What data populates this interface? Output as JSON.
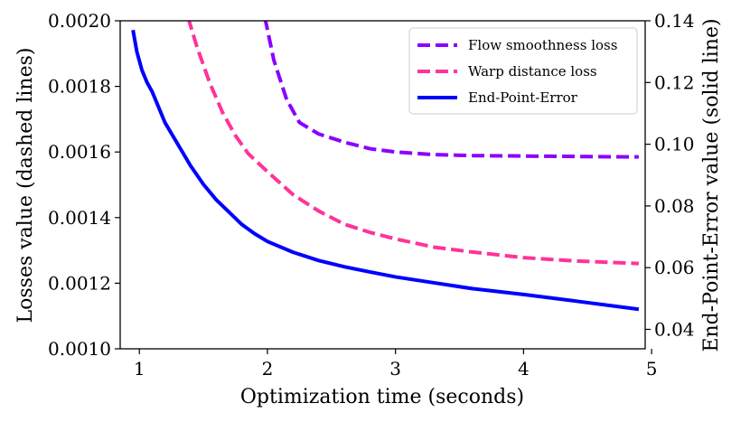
{
  "chart_data": {
    "type": "line",
    "title": "",
    "xlabel": "Optimization time (seconds)",
    "ylabel_left": "Losses value (dashed lines)",
    "ylabel_right": "End-Point-Error value (solid line)",
    "xlim": [
      0.85,
      4.95
    ],
    "ylim_left": [
      0.001,
      0.002
    ],
    "ylim_right": [
      0.0337,
      0.14
    ],
    "x_ticks": [
      1,
      2,
      3,
      4,
      5
    ],
    "x_tick_labels": [
      "1",
      "2",
      "3",
      "4",
      "5"
    ],
    "y_left_ticks": [
      0.001,
      0.0012,
      0.0014,
      0.0016,
      0.0018,
      0.002
    ],
    "y_left_tick_labels": [
      "0.0010",
      "0.0012",
      "0.0014",
      "0.0016",
      "0.0018",
      "0.0020"
    ],
    "y_right_ticks": [
      0.04,
      0.06,
      0.08,
      0.1,
      0.12,
      0.14
    ],
    "y_right_tick_labels": [
      "0.04",
      "0.06",
      "0.08",
      "0.10",
      "0.12",
      "0.14"
    ],
    "legend_position": "top-right",
    "grid": false,
    "series": [
      {
        "name": "Flow smoothness loss",
        "axis": "left",
        "style": "dashed",
        "color": "#8B00FF",
        "x": [
          1.98,
          2.05,
          2.15,
          2.25,
          2.4,
          2.6,
          2.8,
          3.0,
          3.3,
          3.6,
          3.9,
          4.2,
          4.5,
          4.9
        ],
        "y": [
          0.00201,
          0.00188,
          0.00176,
          0.00169,
          0.001655,
          0.00163,
          0.00161,
          0.0016,
          0.001592,
          0.001589,
          0.001588,
          0.001587,
          0.001586,
          0.001585
        ]
      },
      {
        "name": "Warp distance loss",
        "axis": "left",
        "style": "dashed",
        "color": "#FF3399",
        "x": [
          1.38,
          1.45,
          1.55,
          1.65,
          1.75,
          1.85,
          2.0,
          2.2,
          2.4,
          2.6,
          2.8,
          3.0,
          3.3,
          3.6,
          4.0,
          4.4,
          4.9
        ],
        "y": [
          0.00201,
          0.00192,
          0.00181,
          0.00172,
          0.00165,
          0.001595,
          0.00154,
          0.00147,
          0.00142,
          0.00138,
          0.001355,
          0.001335,
          0.00131,
          0.001295,
          0.001278,
          0.001268,
          0.00126
        ]
      },
      {
        "name": "End-Point-Error",
        "axis": "right",
        "style": "solid",
        "color": "#0000FF",
        "x": [
          0.95,
          0.98,
          1.02,
          1.06,
          1.1,
          1.15,
          1.2,
          1.3,
          1.4,
          1.5,
          1.6,
          1.7,
          1.8,
          1.9,
          2.0,
          2.2,
          2.4,
          2.6,
          2.8,
          3.0,
          3.3,
          3.6,
          4.0,
          4.4,
          4.9
        ],
        "y": [
          0.137,
          0.13,
          0.124,
          0.12,
          0.117,
          0.112,
          0.107,
          0.1,
          0.093,
          0.087,
          0.082,
          0.078,
          0.074,
          0.071,
          0.0685,
          0.065,
          0.0623,
          0.0603,
          0.0586,
          0.057,
          0.0551,
          0.0532,
          0.0513,
          0.0492,
          0.0465
        ]
      }
    ]
  }
}
